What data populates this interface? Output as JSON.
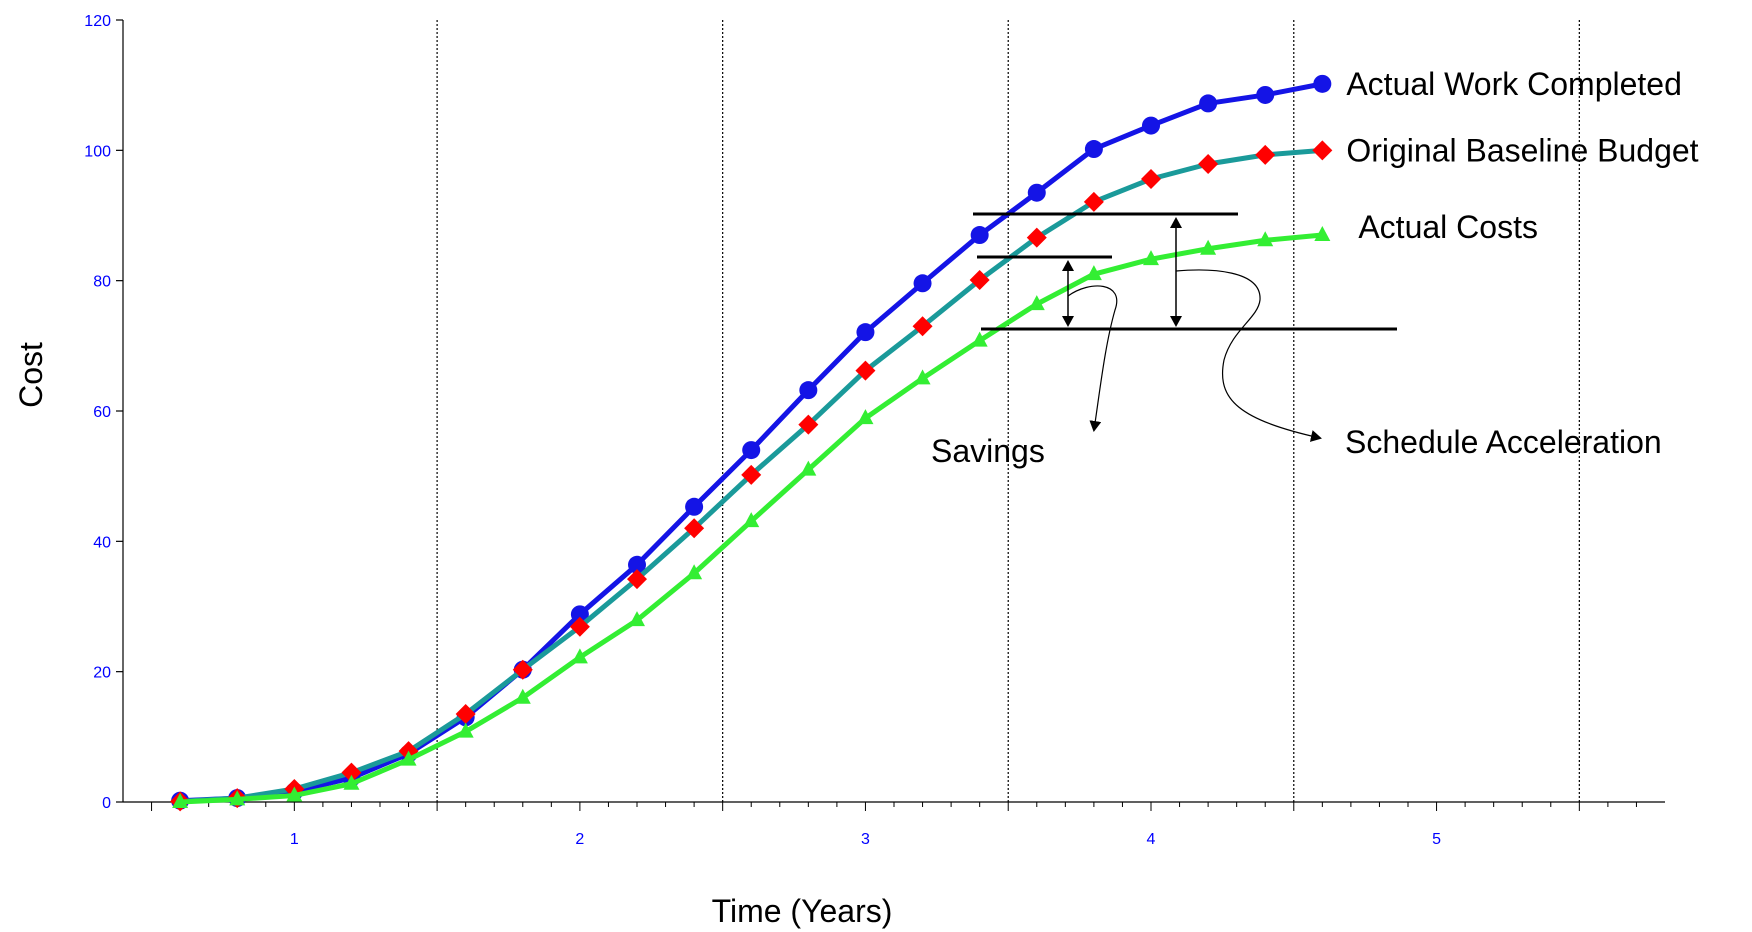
{
  "chart_data": {
    "type": "line",
    "title": "",
    "xlabel": "Time (Years)",
    "ylabel": "Cost",
    "xlim": [
      0.4,
      5.8
    ],
    "ylim": [
      0,
      120
    ],
    "x_ticks": [
      1,
      2,
      3,
      4,
      5
    ],
    "y_ticks": [
      0,
      20,
      40,
      60,
      80,
      100,
      120
    ],
    "x_tick_labels": [
      "1",
      "2",
      "3",
      "4",
      "5"
    ],
    "y_tick_labels": [
      "0",
      "20",
      "40",
      "60",
      "80",
      "100",
      "120"
    ],
    "tick_label_color": "#0000ff",
    "x_gridlines": [
      1.5,
      2.5,
      3.5,
      4.5,
      5.5
    ],
    "x": [
      0.6,
      0.8,
      1.0,
      1.2,
      1.4,
      1.6,
      1.8,
      2.0,
      2.2,
      2.4,
      2.6,
      2.8,
      3.0,
      3.2,
      3.4,
      3.6,
      3.8,
      4.0,
      4.2,
      4.4,
      4.6
    ],
    "series": [
      {
        "name": "Actual Work Completed",
        "line_color": "#1414e6",
        "marker_color": "#1414e6",
        "marker": "circle",
        "values": [
          0.2,
          0.6,
          1.6,
          3.7,
          7.4,
          13.0,
          20.3,
          28.8,
          36.4,
          45.3,
          54.0,
          63.2,
          72.1,
          79.6,
          87.0,
          93.5,
          100.2,
          103.8,
          107.2,
          108.5,
          110.2
        ]
      },
      {
        "name": "Original Baseline Budget",
        "line_color": "#1a9a9a",
        "marker_color": "#ff0000",
        "marker": "diamond",
        "values": [
          0.1,
          0.6,
          2.0,
          4.5,
          7.8,
          13.5,
          20.3,
          26.9,
          34.2,
          42.0,
          50.2,
          57.9,
          66.2,
          73.0,
          80.1,
          86.6,
          92.1,
          95.6,
          97.9,
          99.3,
          100.0
        ]
      },
      {
        "name": "Actual Costs",
        "line_color": "#33ee33",
        "marker_color": "#33ee33",
        "marker": "triangle",
        "values": [
          0.0,
          0.4,
          1.0,
          2.8,
          6.5,
          10.8,
          16.0,
          22.2,
          27.9,
          35.1,
          43.1,
          51.0,
          58.9,
          65.0,
          70.8,
          76.4,
          81.0,
          83.3,
          84.9,
          86.2,
          87.0
        ]
      }
    ],
    "annotations": {
      "savings": "Savings",
      "schedule": "Schedule Acceleration"
    }
  }
}
